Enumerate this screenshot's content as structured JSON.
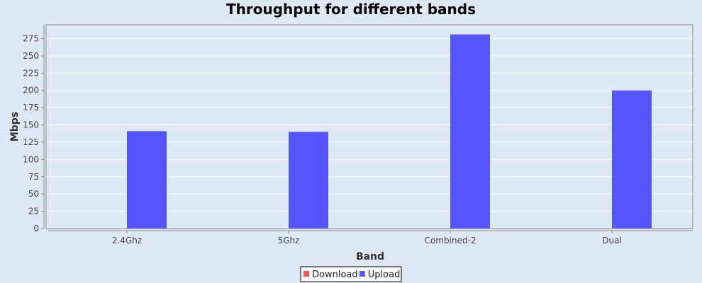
{
  "chart_data": {
    "type": "bar",
    "title": "Throughput for different bands",
    "xlabel": "Band",
    "ylabel": "Mbps",
    "categories": [
      "2.4Ghz",
      "5Ghz",
      "Combined-2",
      "Dual"
    ],
    "series": [
      {
        "name": "Download",
        "color": "#ff5555",
        "values": [
          0,
          0,
          0,
          0
        ]
      },
      {
        "name": "Upload",
        "color": "#5555ff",
        "values": [
          141,
          140,
          281,
          200
        ]
      }
    ],
    "ylim": [
      0,
      295
    ],
    "yticks": [
      0,
      25,
      50,
      75,
      100,
      125,
      150,
      175,
      200,
      225,
      250,
      275
    ],
    "grid": true,
    "legend_position": "bottom-center"
  }
}
